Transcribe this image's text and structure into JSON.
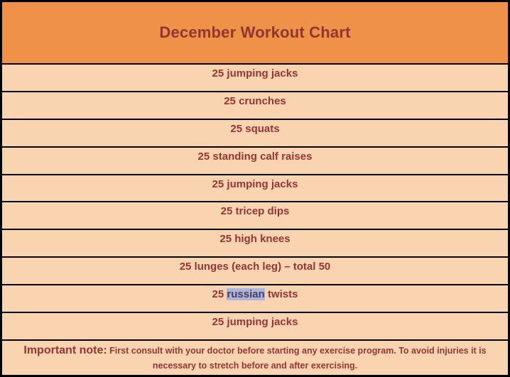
{
  "title": "December Workout Chart",
  "colors": {
    "header_bg": "#EF9148",
    "row_bg": "#FAD3B0",
    "text_maroon": "#943634",
    "border": "#000000",
    "highlight_bg": "#ABB5DB",
    "highlight_text": "#4E3D62"
  },
  "rows": [
    {
      "pre": "25 jumping jacks"
    },
    {
      "pre": "25 crunches"
    },
    {
      "pre": "25 squats"
    },
    {
      "pre": "25 standing calf raises"
    },
    {
      "pre": "25 jumping jacks"
    },
    {
      "pre": "25 tricep dips"
    },
    {
      "pre": "25 high knees"
    },
    {
      "pre": "25 lunges (each leg) – total 50"
    },
    {
      "pre": "25 ",
      "highlight": "russian",
      "post": " twists"
    },
    {
      "pre": "25 jumping jacks"
    }
  ],
  "note": {
    "label": "Important note:",
    "text": " First consult with your doctor before starting any exercise program. To avoid injuries it is necessary to stretch before and after exercising."
  }
}
